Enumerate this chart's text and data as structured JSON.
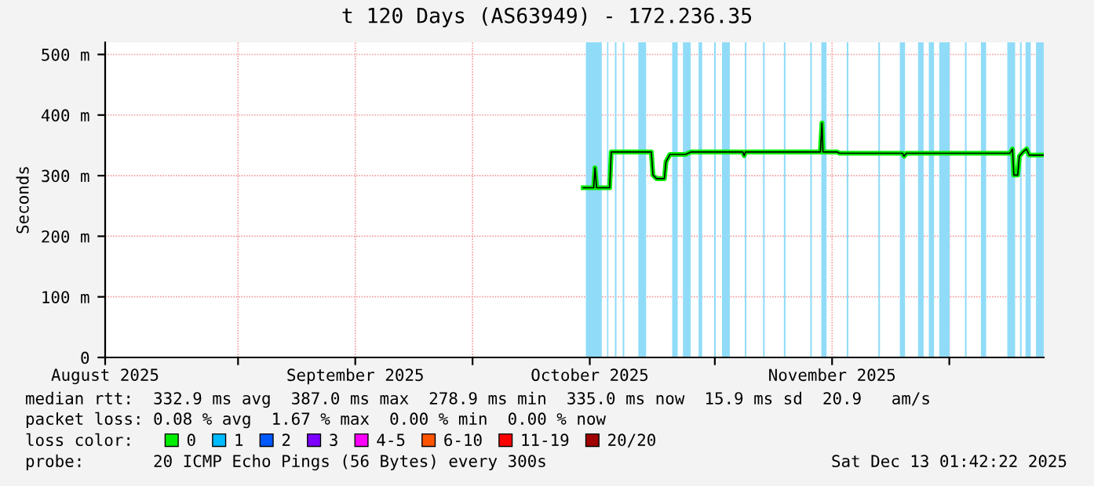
{
  "chart_data": {
    "type": "line",
    "title": "t 120 Days (AS63949) - 172.236.35",
    "ylabel": "Seconds",
    "xlim": [
      "2025-08-15",
      "2025-12-13T02:00"
    ],
    "xticks": [
      {
        "value": "2025-08-15",
        "label": "August 2025"
      },
      {
        "value": "2025-09-01",
        "label": null
      },
      {
        "value": "2025-09-16",
        "label": "September 2025"
      },
      {
        "value": "2025-10-01",
        "label": null
      },
      {
        "value": "2025-10-16",
        "label": "October 2025"
      },
      {
        "value": "2025-11-01",
        "label": null
      },
      {
        "value": "2025-11-16",
        "label": "November 2025"
      },
      {
        "value": "2025-12-01",
        "label": null
      }
    ],
    "ylim": [
      0,
      520
    ],
    "yticks": [
      0,
      {
        "value": 100,
        "label": "100 m"
      },
      {
        "value": 200,
        "label": "200 m"
      },
      {
        "value": 300,
        "label": "300 m"
      },
      {
        "value": 400,
        "label": "400 m"
      },
      {
        "value": 500,
        "label": "500 m"
      }
    ],
    "grid": true,
    "legend": "bottom",
    "legend_title": "loss color:",
    "series": [
      {
        "name": "0",
        "color": "#00ee00",
        "x": [
          "2025-10-15T04:00",
          "2025-10-16T12:00",
          "2025-10-16T16:00",
          "2025-10-16T21:00",
          "2025-10-18T13:00",
          "2025-10-18T18:00",
          "2025-10-23T21:00",
          "2025-10-24T02:00",
          "2025-10-24T13:00",
          "2025-10-25T13:00",
          "2025-10-25T18:00",
          "2025-10-26T06:00",
          "2025-10-28T06:00",
          "2025-10-28T22:00",
          "2025-11-04T14:00",
          "2025-11-04T18:00",
          "2025-11-04T22:00",
          "2025-11-14T12:00",
          "2025-11-14T17:00",
          "2025-11-14T20:00",
          "2025-11-16T16:00",
          "2025-11-16T23:00",
          "2025-11-25T00:00",
          "2025-11-25T05:00",
          "2025-11-25T12:00",
          "2025-12-08T18:00",
          "2025-12-09T02:00",
          "2025-12-09T06:00",
          "2025-12-09T18:00",
          "2025-12-09T23:00",
          "2025-12-10T10:00",
          "2025-12-10T21:00",
          "2025-12-11T05:00",
          "2025-12-13T02:00"
        ],
        "values": [
          280,
          280,
          313,
          280,
          280,
          339,
          339,
          301,
          295,
          295,
          323,
          335,
          335,
          339,
          339,
          333,
          339,
          339,
          387,
          339,
          339,
          337,
          337,
          332,
          337,
          337,
          344,
          301,
          301,
          332,
          339,
          344,
          334,
          334
        ]
      },
      {
        "name": "1",
        "color": "#00bbff"
      },
      {
        "name": "2",
        "color": "#0059ff"
      },
      {
        "name": "3",
        "color": "#7e00ff"
      },
      {
        "name": "4-5",
        "color": "#ff00ff"
      },
      {
        "name": "6-10",
        "color": "#ff5500"
      },
      {
        "name": "11-19",
        "color": "#ff0000"
      },
      {
        "name": "20/20",
        "color": "#a10000"
      }
    ],
    "bands": [
      {
        "axis": "x",
        "from": "2025-10-15T12:00",
        "to": "2025-10-17T13:00",
        "color": "#90dcf8"
      },
      {
        "axis": "x",
        "from": "2025-10-18T05:00",
        "to": "2025-10-18T09:00",
        "color": "#90dcf8"
      },
      {
        "axis": "x",
        "from": "2025-10-19T05:00",
        "to": "2025-10-19T10:00",
        "color": "#90dcf8"
      },
      {
        "axis": "x",
        "from": "2025-10-20T05:00",
        "to": "2025-10-20T10:00",
        "color": "#90dcf8"
      },
      {
        "axis": "x",
        "from": "2025-10-22T05:00",
        "to": "2025-10-23T05:00",
        "color": "#90dcf8"
      },
      {
        "axis": "x",
        "from": "2025-10-26T13:00",
        "to": "2025-10-27T06:00",
        "color": "#90dcf8"
      },
      {
        "axis": "x",
        "from": "2025-10-27T22:00",
        "to": "2025-10-28T22:00",
        "color": "#90dcf8"
      },
      {
        "axis": "x",
        "from": "2025-10-29T22:00",
        "to": "2025-10-30T09:00",
        "color": "#90dcf8"
      },
      {
        "axis": "x",
        "from": "2025-10-31T22:00",
        "to": "2025-11-01T03:00",
        "color": "#90dcf8"
      },
      {
        "axis": "x",
        "from": "2025-11-01T22:00",
        "to": "2025-11-02T22:00",
        "color": "#90dcf8"
      },
      {
        "axis": "x",
        "from": "2025-11-04T20:00",
        "to": "2025-11-05T01:00",
        "color": "#90dcf8"
      },
      {
        "axis": "x",
        "from": "2025-11-07T04:00",
        "to": "2025-11-07T09:00",
        "color": "#90dcf8"
      },
      {
        "axis": "x",
        "from": "2025-11-09T20:00",
        "to": "2025-11-10T01:00",
        "color": "#90dcf8"
      },
      {
        "axis": "x",
        "from": "2025-11-13T05:00",
        "to": "2025-11-13T10:00",
        "color": "#90dcf8"
      },
      {
        "axis": "x",
        "from": "2025-11-14T15:00",
        "to": "2025-11-15T07:00",
        "color": "#90dcf8"
      },
      {
        "axis": "x",
        "from": "2025-11-17T21:00",
        "to": "2025-11-18T02:00",
        "color": "#90dcf8"
      },
      {
        "axis": "x",
        "from": "2025-11-21T22:00",
        "to": "2025-11-22T03:00",
        "color": "#90dcf8"
      },
      {
        "axis": "x",
        "from": "2025-11-24T16:00",
        "to": "2025-11-25T08:00",
        "color": "#90dcf8"
      },
      {
        "axis": "x",
        "from": "2025-11-27T00:00",
        "to": "2025-11-27T17:00",
        "color": "#90dcf8"
      },
      {
        "axis": "x",
        "from": "2025-11-28T09:00",
        "to": "2025-11-29T01:00",
        "color": "#90dcf8"
      },
      {
        "axis": "x",
        "from": "2025-11-29T17:00",
        "to": "2025-12-01T01:00",
        "color": "#90dcf8"
      },
      {
        "axis": "x",
        "from": "2025-12-03T00:00",
        "to": "2025-12-03T05:00",
        "color": "#90dcf8"
      },
      {
        "axis": "x",
        "from": "2025-12-05T01:00",
        "to": "2025-12-05T17:00",
        "color": "#90dcf8"
      },
      {
        "axis": "x",
        "from": "2025-12-08T10:00",
        "to": "2025-12-09T10:00",
        "color": "#90dcf8"
      },
      {
        "axis": "x",
        "from": "2025-12-10T01:00",
        "to": "2025-12-10T06:00",
        "color": "#90dcf8"
      },
      {
        "axis": "x",
        "from": "2025-12-10T18:00",
        "to": "2025-12-11T10:00",
        "color": "#90dcf8"
      },
      {
        "axis": "x",
        "from": "2025-12-12T02:00",
        "to": "2025-12-13T02:00",
        "color": "#90dcf8"
      }
    ],
    "annotations": [
      "median rtt:  332.9 ms avg  387.0 ms max  278.9 ms min  335.0 ms now  15.9 ms sd  20.9   am/s",
      "packet loss: 0.08 % avg  1.67 % max  0.00 % min  0.00 % now",
      "probe:       20 ICMP Echo Pings (56 Bytes) every 300s",
      "Sat Dec 13 01:42:22 2025"
    ]
  }
}
